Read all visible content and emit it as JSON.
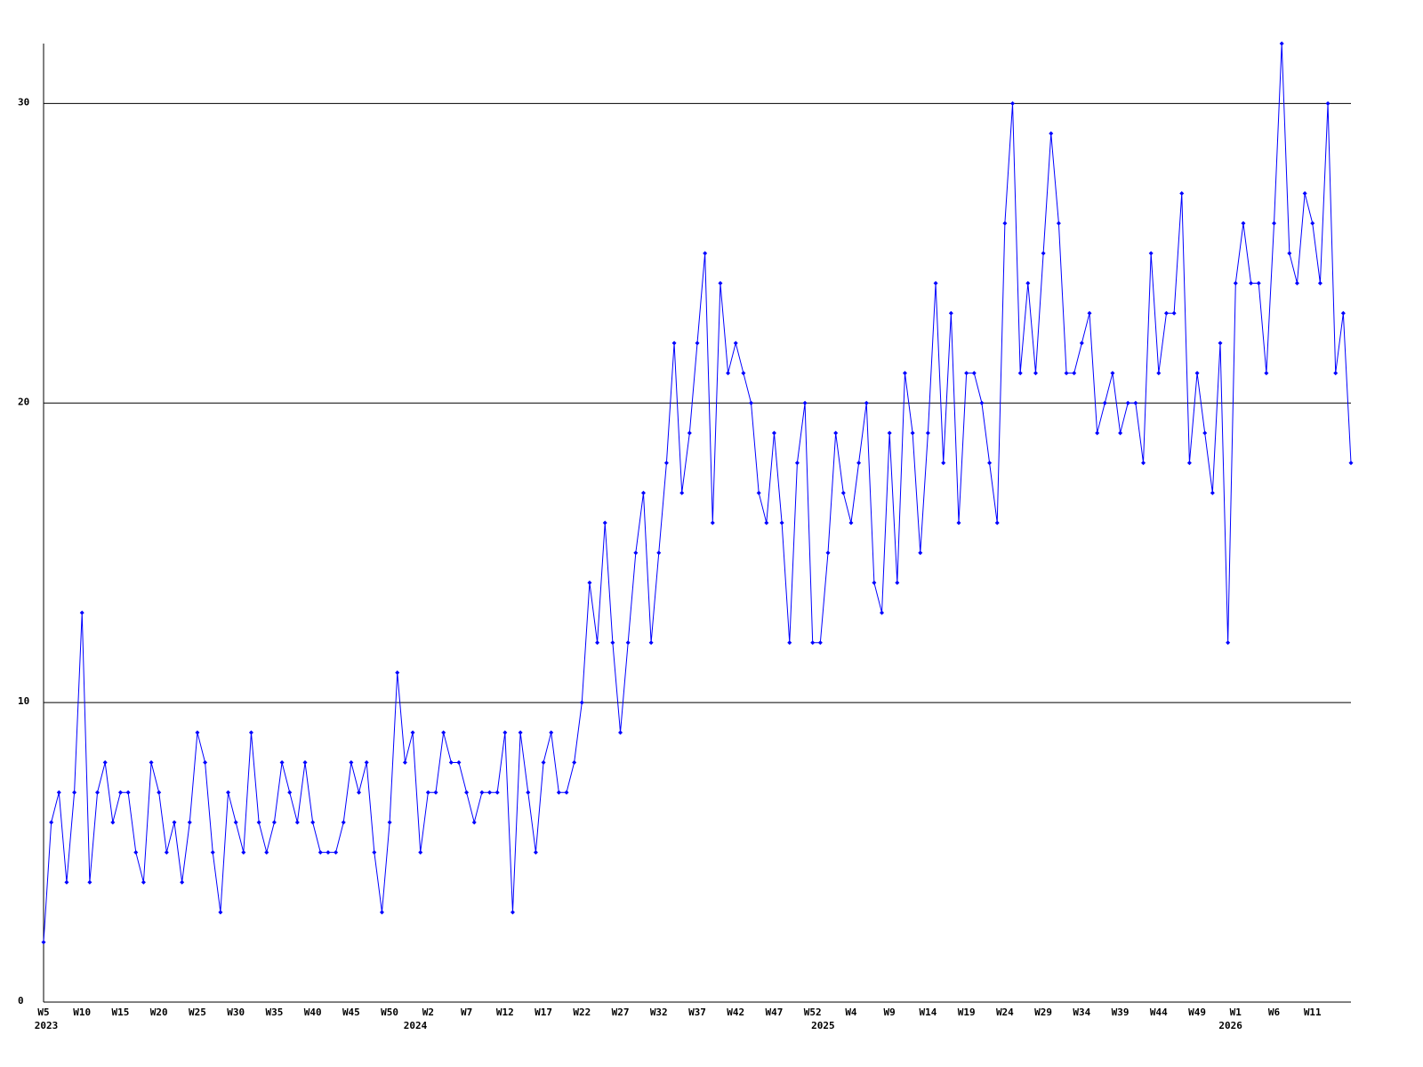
{
  "chart_data": {
    "type": "line",
    "categories": [
      "W5",
      null,
      null,
      null,
      null,
      "W10",
      null,
      null,
      null,
      null,
      "W15",
      null,
      null,
      null,
      null,
      "W20",
      null,
      null,
      null,
      null,
      "W25",
      null,
      null,
      null,
      null,
      "W30",
      null,
      null,
      null,
      null,
      "W35",
      null,
      null,
      null,
      null,
      "W40",
      null,
      null,
      null,
      null,
      "W45",
      null,
      null,
      null,
      null,
      "W50",
      null,
      null,
      null,
      null,
      "W2",
      null,
      null,
      null,
      null,
      "W7",
      null,
      null,
      null,
      null,
      "W12",
      null,
      null,
      null,
      null,
      "W17",
      null,
      null,
      null,
      null,
      "W22",
      null,
      null,
      null,
      null,
      "W27",
      null,
      null,
      null,
      null,
      "W32",
      null,
      null,
      null,
      null,
      "W37",
      null,
      null,
      null,
      null,
      "W42",
      null,
      null,
      null,
      null,
      "W47",
      null,
      null,
      null,
      null,
      "W52",
      null,
      null,
      null,
      null,
      "W4",
      null,
      null,
      null,
      null,
      "W9",
      null,
      null,
      null,
      null,
      "W14",
      null,
      null,
      null,
      null,
      "W19",
      null,
      null,
      null,
      null,
      "W24",
      null,
      null,
      null,
      null,
      "W29",
      null,
      null,
      null,
      null,
      "W34",
      null,
      null,
      null,
      null,
      "W39",
      null,
      null,
      null,
      null,
      "W44",
      null,
      null,
      null,
      null,
      "W49",
      null,
      null,
      null,
      null,
      "W1",
      null,
      null,
      null,
      null,
      "W6",
      null,
      null,
      null,
      null,
      "W11",
      null,
      null,
      null,
      null,
      null
    ],
    "year_labels": [
      {
        "category": 0,
        "label": "2023"
      },
      {
        "category": 48,
        "label": "2024"
      },
      {
        "category": 101,
        "label": "2025"
      },
      {
        "category": 154,
        "label": "2026"
      }
    ],
    "series": [
      {
        "color": "#0000ff",
        "values": [
          2,
          6,
          7,
          4,
          7,
          13,
          4,
          7,
          8,
          6,
          7,
          7,
          5,
          4,
          8,
          7,
          5,
          6,
          4,
          6,
          9,
          8,
          5,
          3,
          7,
          6,
          5,
          9,
          6,
          5,
          6,
          8,
          7,
          6,
          8,
          6,
          5,
          5,
          5,
          6,
          8,
          7,
          8,
          5,
          3,
          6,
          11,
          8,
          9,
          5,
          7,
          7,
          9,
          8,
          8,
          7,
          6,
          7,
          7,
          7,
          9,
          3,
          9,
          7,
          5,
          8,
          9,
          7,
          7,
          8,
          10,
          14,
          12,
          16,
          12,
          9,
          12,
          15,
          17,
          12,
          15,
          18,
          22,
          17,
          19,
          22,
          25,
          16,
          24,
          21,
          22,
          21,
          20,
          17,
          16,
          19,
          16,
          12,
          18,
          20,
          12,
          12,
          15,
          19,
          17,
          16,
          18,
          20,
          14,
          13,
          19,
          14,
          21,
          19,
          15,
          19,
          24,
          18,
          23,
          16,
          21,
          21,
          20,
          18,
          16,
          26,
          30,
          21,
          24,
          21,
          25,
          29,
          26,
          21,
          21,
          22,
          23,
          19,
          20,
          21,
          19,
          20,
          20,
          18,
          25,
          21,
          23,
          23,
          27,
          18,
          21,
          19,
          17,
          22,
          12,
          24,
          26,
          24,
          24,
          21,
          26,
          32,
          25,
          24,
          27,
          26,
          24,
          30,
          21,
          23,
          18
        ]
      }
    ],
    "ylim": [
      0,
      32
    ],
    "yticks": [
      0,
      10,
      20,
      30
    ],
    "grid": true
  }
}
